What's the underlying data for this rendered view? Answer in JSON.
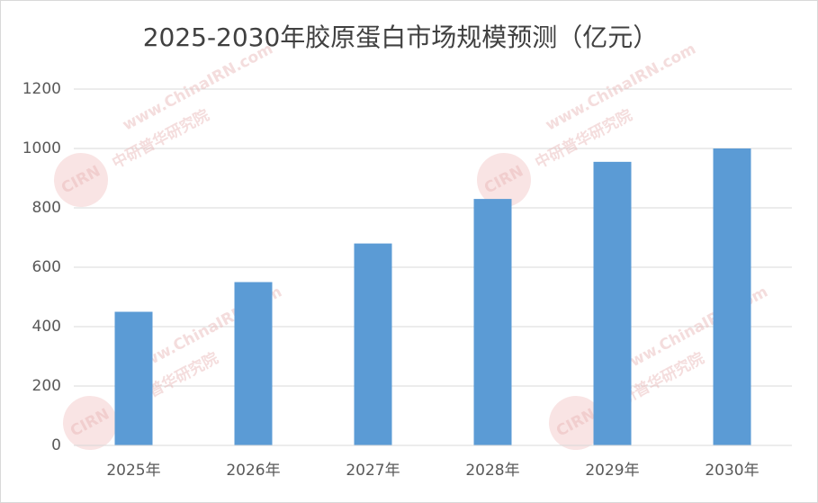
{
  "chart_data": {
    "type": "bar",
    "title": "2025-2030年胶原蛋白市场规模预测（亿元）",
    "categories": [
      "2025年",
      "2026年",
      "2027年",
      "2028年",
      "2029年",
      "2030年"
    ],
    "values": [
      450,
      550,
      680,
      830,
      955,
      1000
    ],
    "color": "#5b9bd5",
    "ylim": [
      0,
      1200
    ],
    "yticks": [
      0,
      200,
      400,
      600,
      800,
      1000,
      1200
    ],
    "grid": true,
    "watermark": {
      "site": "www.ChinaIRN.com",
      "logo": "CIRN",
      "name": "中研普华研究院"
    }
  }
}
